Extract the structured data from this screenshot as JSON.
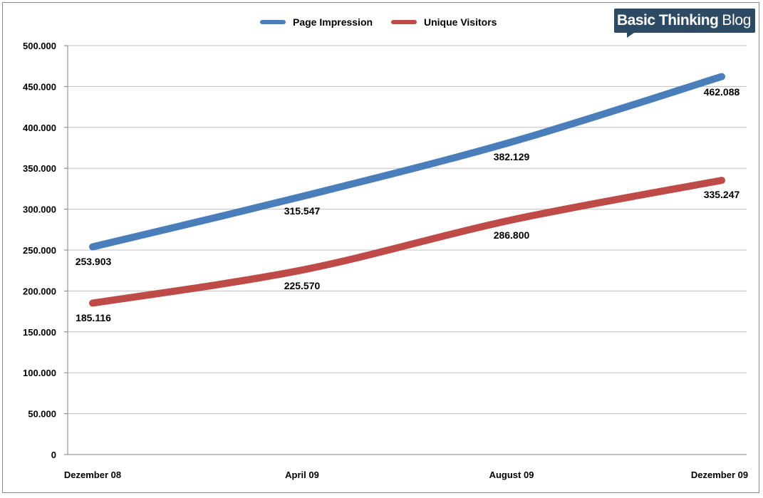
{
  "chart_data": {
    "type": "line",
    "categories": [
      "Dezember 08",
      "April 09",
      "August 09",
      "Dezember 09"
    ],
    "series": [
      {
        "name": "Page Impression",
        "color": "#4a7ebb",
        "values": [
          253903,
          315547,
          382129,
          462088
        ],
        "labels": [
          "253.903",
          "315.547",
          "382.129",
          "462.088"
        ]
      },
      {
        "name": "Unique Visitors",
        "color": "#be4b48",
        "values": [
          185116,
          225570,
          286800,
          335247
        ],
        "labels": [
          "185.116",
          "225.570",
          "286.800",
          "335.247"
        ]
      }
    ],
    "yticks": [
      0,
      50000,
      100000,
      150000,
      200000,
      250000,
      300000,
      350000,
      400000,
      450000,
      500000
    ],
    "ytick_labels": [
      "0",
      "50.000",
      "100.000",
      "150.000",
      "200.000",
      "250.000",
      "300.000",
      "350.000",
      "400.000",
      "450.000",
      "500.000"
    ],
    "ylim": [
      0,
      500000
    ],
    "grid": true,
    "legend_position": "top-center",
    "smooth": true
  },
  "logo": {
    "text_bold": "Basic Thinking",
    "text_regular": "Blog"
  }
}
